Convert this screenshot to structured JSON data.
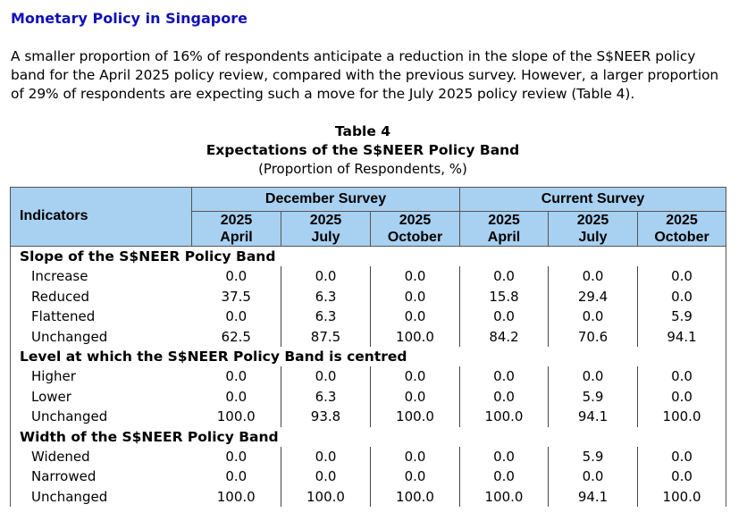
{
  "heading": "Monetary Policy in Singapore",
  "paragraph": "A smaller proportion of 16% of respondents anticipate a reduction in the slope of the S$NEER policy band for the April 2025 policy review, compared with the previous survey. However, a larger proportion of 29% of respondents are expecting such a move for the July 2025 policy review (Table 4).",
  "table": {
    "number": "Table 4",
    "title": "Expectations of the S$NEER Policy Band",
    "subtitle": "(Proportion of Respondents, %)",
    "indicators_header": "Indicators",
    "surveys": [
      "December Survey",
      "Current Survey"
    ],
    "columns": [
      {
        "year": "2025",
        "month": "April"
      },
      {
        "year": "2025",
        "month": "July"
      },
      {
        "year": "2025",
        "month": "October"
      },
      {
        "year": "2025",
        "month": "April"
      },
      {
        "year": "2025",
        "month": "July"
      },
      {
        "year": "2025",
        "month": "October"
      }
    ],
    "sections": [
      {
        "title": "Slope of the S$NEER Policy Band",
        "rows": [
          {
            "label": "Increase",
            "values": [
              "0.0",
              "0.0",
              "0.0",
              "0.0",
              "0.0",
              "0.0"
            ]
          },
          {
            "label": "Reduced",
            "values": [
              "37.5",
              "6.3",
              "0.0",
              "15.8",
              "29.4",
              "0.0"
            ]
          },
          {
            "label": "Flattened",
            "values": [
              "0.0",
              "6.3",
              "0.0",
              "0.0",
              "0.0",
              "5.9"
            ]
          },
          {
            "label": "Unchanged",
            "values": [
              "62.5",
              "87.5",
              "100.0",
              "84.2",
              "70.6",
              "94.1"
            ]
          }
        ]
      },
      {
        "title": "Level at which the S$NEER Policy Band is centred",
        "rows": [
          {
            "label": "Higher",
            "values": [
              "0.0",
              "0.0",
              "0.0",
              "0.0",
              "0.0",
              "0.0"
            ]
          },
          {
            "label": "Lower",
            "values": [
              "0.0",
              "6.3",
              "0.0",
              "0.0",
              "5.9",
              "0.0"
            ]
          },
          {
            "label": "Unchanged",
            "values": [
              "100.0",
              "93.8",
              "100.0",
              "100.0",
              "94.1",
              "100.0"
            ]
          }
        ]
      },
      {
        "title": "Width of the S$NEER Policy Band",
        "rows": [
          {
            "label": "Widened",
            "values": [
              "0.0",
              "0.0",
              "0.0",
              "0.0",
              "5.9",
              "0.0"
            ]
          },
          {
            "label": "Narrowed",
            "values": [
              "0.0",
              "0.0",
              "0.0",
              "0.0",
              "0.0",
              "0.0"
            ]
          },
          {
            "label": "Unchanged",
            "values": [
              "100.0",
              "100.0",
              "100.0",
              "100.0",
              "94.1",
              "100.0"
            ]
          }
        ]
      }
    ]
  },
  "colors": {
    "heading": "#1010b8",
    "header_background": "#a8d0f0"
  }
}
